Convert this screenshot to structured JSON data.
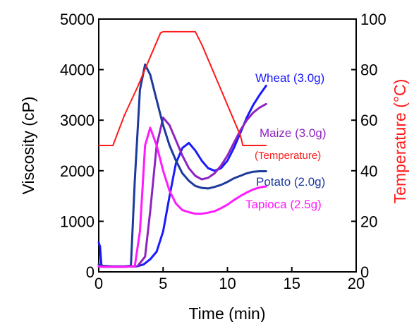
{
  "chart_data": {
    "type": "line",
    "xlabel": "Time (min)",
    "ylabel": "Viscosity (cP)",
    "y2label": "Temperature (°C)",
    "xlim": [
      0,
      20
    ],
    "ylim": [
      0,
      5000
    ],
    "y2lim": [
      0,
      100
    ],
    "xticks": [
      0,
      5,
      10,
      15,
      20
    ],
    "yticks": [
      0,
      1000,
      2000,
      3000,
      4000,
      5000
    ],
    "y2ticks": [
      0,
      20,
      40,
      60,
      80,
      100
    ],
    "grid": false,
    "series": [
      {
        "name": "Wheat (3.0g)",
        "axis": "left",
        "color": "#1a1aff",
        "x": [
          0,
          0.1,
          0.2,
          0.3,
          1,
          2,
          3,
          3.5,
          4,
          4.5,
          5,
          5.5,
          6,
          6.5,
          7,
          7.5,
          8,
          8.5,
          9,
          9.5,
          10,
          10.5,
          11,
          11.5,
          12,
          12.5,
          13
        ],
        "values": [
          580,
          500,
          150,
          100,
          100,
          100,
          110,
          150,
          250,
          400,
          800,
          1500,
          2150,
          2450,
          2550,
          2400,
          2200,
          2050,
          2000,
          2050,
          2200,
          2450,
          2750,
          3050,
          3300,
          3500,
          3680
        ]
      },
      {
        "name": "Maize (3.0g)",
        "axis": "left",
        "color": "#8e24c0",
        "x": [
          0,
          0.3,
          1,
          2,
          3,
          3.6,
          4,
          4.5,
          5,
          5.5,
          6,
          6.5,
          7,
          7.5,
          8,
          8.5,
          9,
          9.5,
          10,
          10.5,
          11,
          11.5,
          12,
          12.5,
          13
        ],
        "values": [
          100,
          100,
          100,
          100,
          110,
          300,
          1200,
          2500,
          3050,
          2900,
          2600,
          2300,
          2050,
          1900,
          1830,
          1860,
          1950,
          2100,
          2300,
          2550,
          2800,
          3000,
          3150,
          3250,
          3320
        ]
      },
      {
        "name": "Potato (2.0g)",
        "axis": "left",
        "color": "#1c3a9e",
        "x": [
          0,
          0.3,
          1,
          2,
          2.5,
          2.8,
          3.2,
          3.6,
          4,
          4.5,
          5,
          5.5,
          6,
          6.5,
          7,
          7.5,
          8,
          8.5,
          9,
          9.5,
          10,
          10.5,
          11,
          11.5,
          12,
          12.5,
          13
        ],
        "values": [
          150,
          120,
          110,
          110,
          120,
          1800,
          3600,
          4100,
          3900,
          3400,
          2900,
          2500,
          2200,
          1950,
          1800,
          1700,
          1660,
          1650,
          1680,
          1720,
          1780,
          1850,
          1900,
          1950,
          1980,
          1990,
          1990
        ]
      },
      {
        "name": "Tapioca (2.5g)",
        "axis": "left",
        "color": "#ff1aff",
        "x": [
          0,
          0.3,
          1,
          2,
          2.8,
          3.2,
          3.6,
          4,
          4.5,
          5,
          5.5,
          6,
          6.5,
          7,
          7.5,
          8,
          8.5,
          9,
          9.5,
          10,
          10.5,
          11,
          11.5,
          12,
          12.5,
          13
        ],
        "values": [
          110,
          100,
          100,
          100,
          110,
          800,
          2500,
          2850,
          2500,
          2000,
          1600,
          1350,
          1220,
          1180,
          1150,
          1150,
          1170,
          1200,
          1260,
          1330,
          1420,
          1500,
          1570,
          1630,
          1670,
          1690
        ]
      },
      {
        "name": "(Temperature)",
        "axis": "right",
        "color": "#ff1a1a",
        "x": [
          0,
          1,
          1.1,
          2,
          3,
          4,
          4.8,
          5,
          6,
          7,
          7.5,
          8,
          9,
          10,
          11,
          11.2,
          12,
          13
        ],
        "values": [
          50,
          50,
          50,
          62,
          73,
          85,
          94.5,
          95,
          95,
          95,
          95,
          90,
          78,
          66,
          54,
          50,
          50,
          50
        ]
      }
    ],
    "label_positions": [
      "Wheat (3.0g)",
      "Maize (3.0g)",
      "(Temperature)",
      "Potato (2.0g)",
      "Tapioca (2.5g)"
    ]
  },
  "chart_labels": {
    "wheat": "Wheat (3.0g)",
    "maize": "Maize (3.0g)",
    "temperature": "(Temperature)",
    "potato": "Potato (2.0g)",
    "tapioca": "Tapioca (2.5g)"
  }
}
